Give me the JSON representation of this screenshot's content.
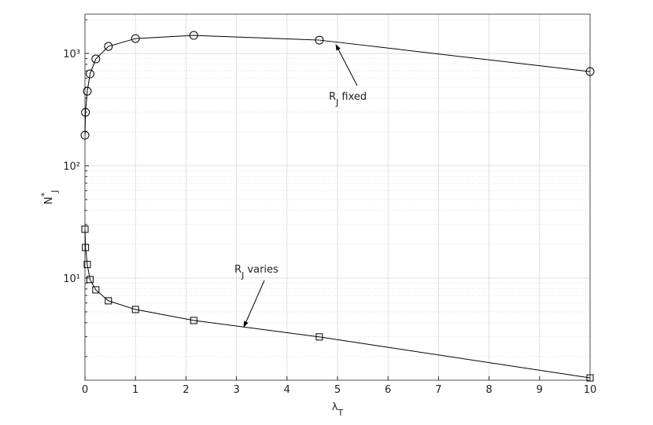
{
  "chart_data": {
    "type": "line",
    "xlabel": {
      "main": "λ",
      "sub": "T"
    },
    "ylabel": {
      "main": "N",
      "sup": "*",
      "sub": "J"
    },
    "log_y": true,
    "grid": true,
    "line_color": "#000000",
    "grid_color": "#d9d9d9",
    "xlim": [
      0,
      10
    ],
    "xticks": [
      0,
      1,
      2,
      3,
      4,
      5,
      6,
      7,
      8,
      9,
      10
    ],
    "ylim": [
      1.23,
      2240
    ],
    "yticks": [
      {
        "value": 10,
        "label": "10¹"
      },
      {
        "value": 100,
        "label": "10²"
      },
      {
        "value": 1000,
        "label": "10³"
      }
    ],
    "yminorticks": [
      2,
      3,
      4,
      5,
      6,
      7,
      8,
      9,
      20,
      30,
      40,
      50,
      60,
      70,
      80,
      90,
      200,
      300,
      400,
      500,
      600,
      700,
      800,
      900,
      2000
    ],
    "x": [
      0,
      0.01,
      0.046,
      0.1,
      0.215,
      0.464,
      1,
      2.154,
      4.64,
      10
    ],
    "series": [
      {
        "marker": "circle",
        "annotation": {
          "main": "R",
          "sub": "J",
          "text": "fixed"
        },
        "values": [
          187,
          299,
          461,
          658,
          894,
          1156,
          1358,
          1449,
          1315,
          690
        ]
      },
      {
        "marker": "square",
        "annotation": {
          "main": "R",
          "sub": "J",
          "text": "varies"
        },
        "values": [
          27.2,
          18.7,
          13.2,
          9.7,
          7.85,
          6.27,
          5.25,
          4.19,
          2.99,
          1.29
        ]
      }
    ]
  }
}
